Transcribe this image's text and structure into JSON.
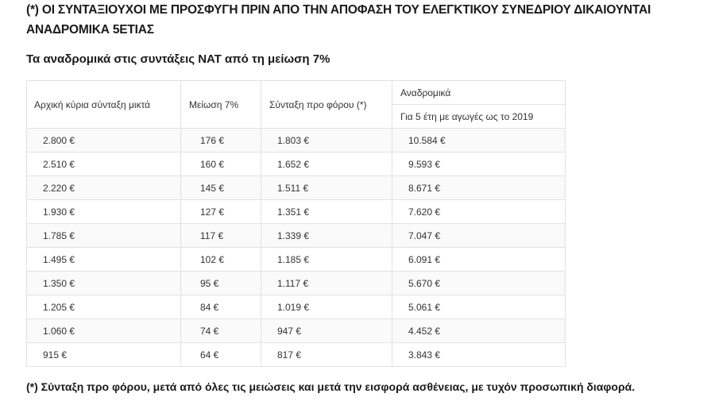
{
  "heading": "(*) ΟΙ ΣΥΝΤΑΞΙΟΥΧΟΙ ΜΕ ΠΡΟΣΦΥΓΗ ΠΡΙΝ ΑΠΟ ΤΗΝ ΑΠΟΦΑΣΗ ΤΟΥ ΕΛΕΓΚΤΙΚΟΥ ΣΥΝΕΔΡΙΟΥ ΔΙΚΑΙΟΥΝΤΑΙ ΑΝΑΔΡΟΜΙΚΑ 5ΕΤΙΑΣ",
  "subheading": "Τα αναδρομικά στις συντάξεις ΝΑΤ από τη μείωση 7%",
  "table": {
    "headers": [
      "Αρχική κύρια σύνταξη μικτά",
      "Μείωση 7%",
      "Σύνταξη προ φόρου (*)",
      "Αναδρομικά"
    ],
    "subheader": "Για 5 έτη με αγωγές ως το 2019",
    "rows": [
      [
        "2.800 €",
        "176 €",
        "1.803 €",
        "10.584 €"
      ],
      [
        "2.510 €",
        "160 €",
        "1.652 €",
        "9.593 €"
      ],
      [
        "2.220 €",
        "145 €",
        "1.511 €",
        "8.671 €"
      ],
      [
        "1.930 €",
        "127 €",
        "1.351 €",
        "7.620 €"
      ],
      [
        "1.785 €",
        "117 €",
        "1.339 €",
        "7.047 €"
      ],
      [
        "1.495 €",
        "102 €",
        "1.185 €",
        "6.091 €"
      ],
      [
        "1.350 €",
        "95 €",
        "1.117 €",
        "5.670 €"
      ],
      [
        "1.205 €",
        "84 €",
        "1.019 €",
        "5.061 €"
      ],
      [
        "1.060 €",
        "74 €",
        "947 €",
        "4.452 €"
      ],
      [
        "915 €",
        "64 €",
        "817 €",
        "3.843 €"
      ]
    ]
  },
  "footnote": "(*) Σύνταξη προ φόρου, μετά από όλες τις μειώσεις και μετά την εισφορά ασθένειας, με τυχόν προσωπική διαφορά."
}
